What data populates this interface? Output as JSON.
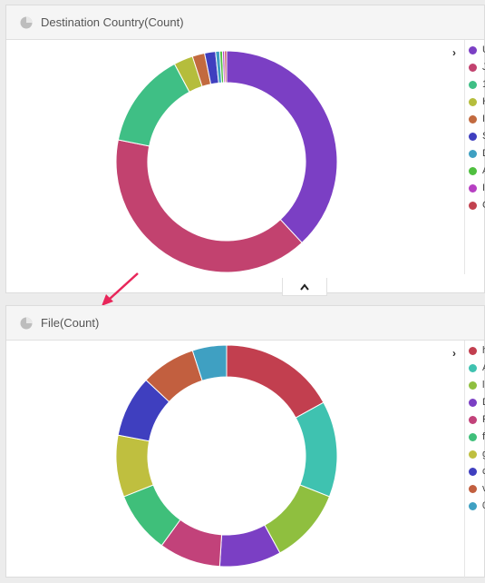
{
  "panels": [
    {
      "title": "Destination Country(Count)",
      "legend": [
        {
          "label": "U",
          "color": "#7b3fc4"
        },
        {
          "label": "J",
          "color": "#c2426f"
        },
        {
          "label": "1",
          "color": "#3fbf85"
        },
        {
          "label": "H",
          "color": "#b5bd3c"
        },
        {
          "label": "I",
          "color": "#c26a3f"
        },
        {
          "label": "S",
          "color": "#3f3fbf"
        },
        {
          "label": "D",
          "color": "#3fa0c2"
        },
        {
          "label": "A",
          "color": "#4fbf3f"
        },
        {
          "label": "I",
          "color": "#b63fc2"
        },
        {
          "label": "C",
          "color": "#c2424f"
        }
      ]
    },
    {
      "title": "File(Count)",
      "legend": [
        {
          "label": "h",
          "color": "#c23f4f"
        },
        {
          "label": "A",
          "color": "#3fc2b0"
        },
        {
          "label": "l",
          "color": "#8fbf3f"
        },
        {
          "label": "D",
          "color": "#7b3fc4"
        },
        {
          "label": "F",
          "color": "#c2427a"
        },
        {
          "label": "fi",
          "color": "#3fbf7a"
        },
        {
          "label": "g",
          "color": "#bfbf3f"
        },
        {
          "label": "c",
          "color": "#3f3fbf"
        },
        {
          "label": "v",
          "color": "#c25f3f"
        },
        {
          "label": "0",
          "color": "#3fa0c2"
        }
      ]
    }
  ],
  "chart_data": [
    {
      "type": "pie",
      "title": "Destination Country(Count)",
      "donut": true,
      "slices": [
        {
          "label": "U",
          "value": 38,
          "color": "#7b3fc4"
        },
        {
          "label": "J",
          "value": 40,
          "color": "#c2426f"
        },
        {
          "label": "1",
          "value": 14,
          "color": "#3fbf85"
        },
        {
          "label": "H",
          "value": 2.8,
          "color": "#b5bd3c"
        },
        {
          "label": "I",
          "value": 1.8,
          "color": "#c26a3f"
        },
        {
          "label": "S",
          "value": 1.6,
          "color": "#3f3fbf"
        },
        {
          "label": "D",
          "value": 0.6,
          "color": "#3fa0c2"
        },
        {
          "label": "A",
          "value": 0.4,
          "color": "#4fbf3f"
        },
        {
          "label": "I",
          "value": 0.3,
          "color": "#b63fc2"
        },
        {
          "label": "C",
          "value": 0.3,
          "color": "#c2424f"
        }
      ]
    },
    {
      "type": "pie",
      "title": "File(Count)",
      "donut": true,
      "slices": [
        {
          "label": "h",
          "value": 17,
          "color": "#c23f4f"
        },
        {
          "label": "A",
          "value": 14,
          "color": "#3fc2b0"
        },
        {
          "label": "l",
          "value": 11,
          "color": "#8fbf3f"
        },
        {
          "label": "D",
          "value": 9,
          "color": "#7b3fc4"
        },
        {
          "label": "F",
          "value": 9,
          "color": "#c2427a"
        },
        {
          "label": "fi",
          "value": 9,
          "color": "#3fbf7a"
        },
        {
          "label": "g",
          "value": 9,
          "color": "#bfbf3f"
        },
        {
          "label": "c",
          "value": 9,
          "color": "#3f3fbf"
        },
        {
          "label": "v",
          "value": 8,
          "color": "#c25f3f"
        },
        {
          "label": "0",
          "value": 5,
          "color": "#3fa0c2"
        }
      ]
    }
  ]
}
